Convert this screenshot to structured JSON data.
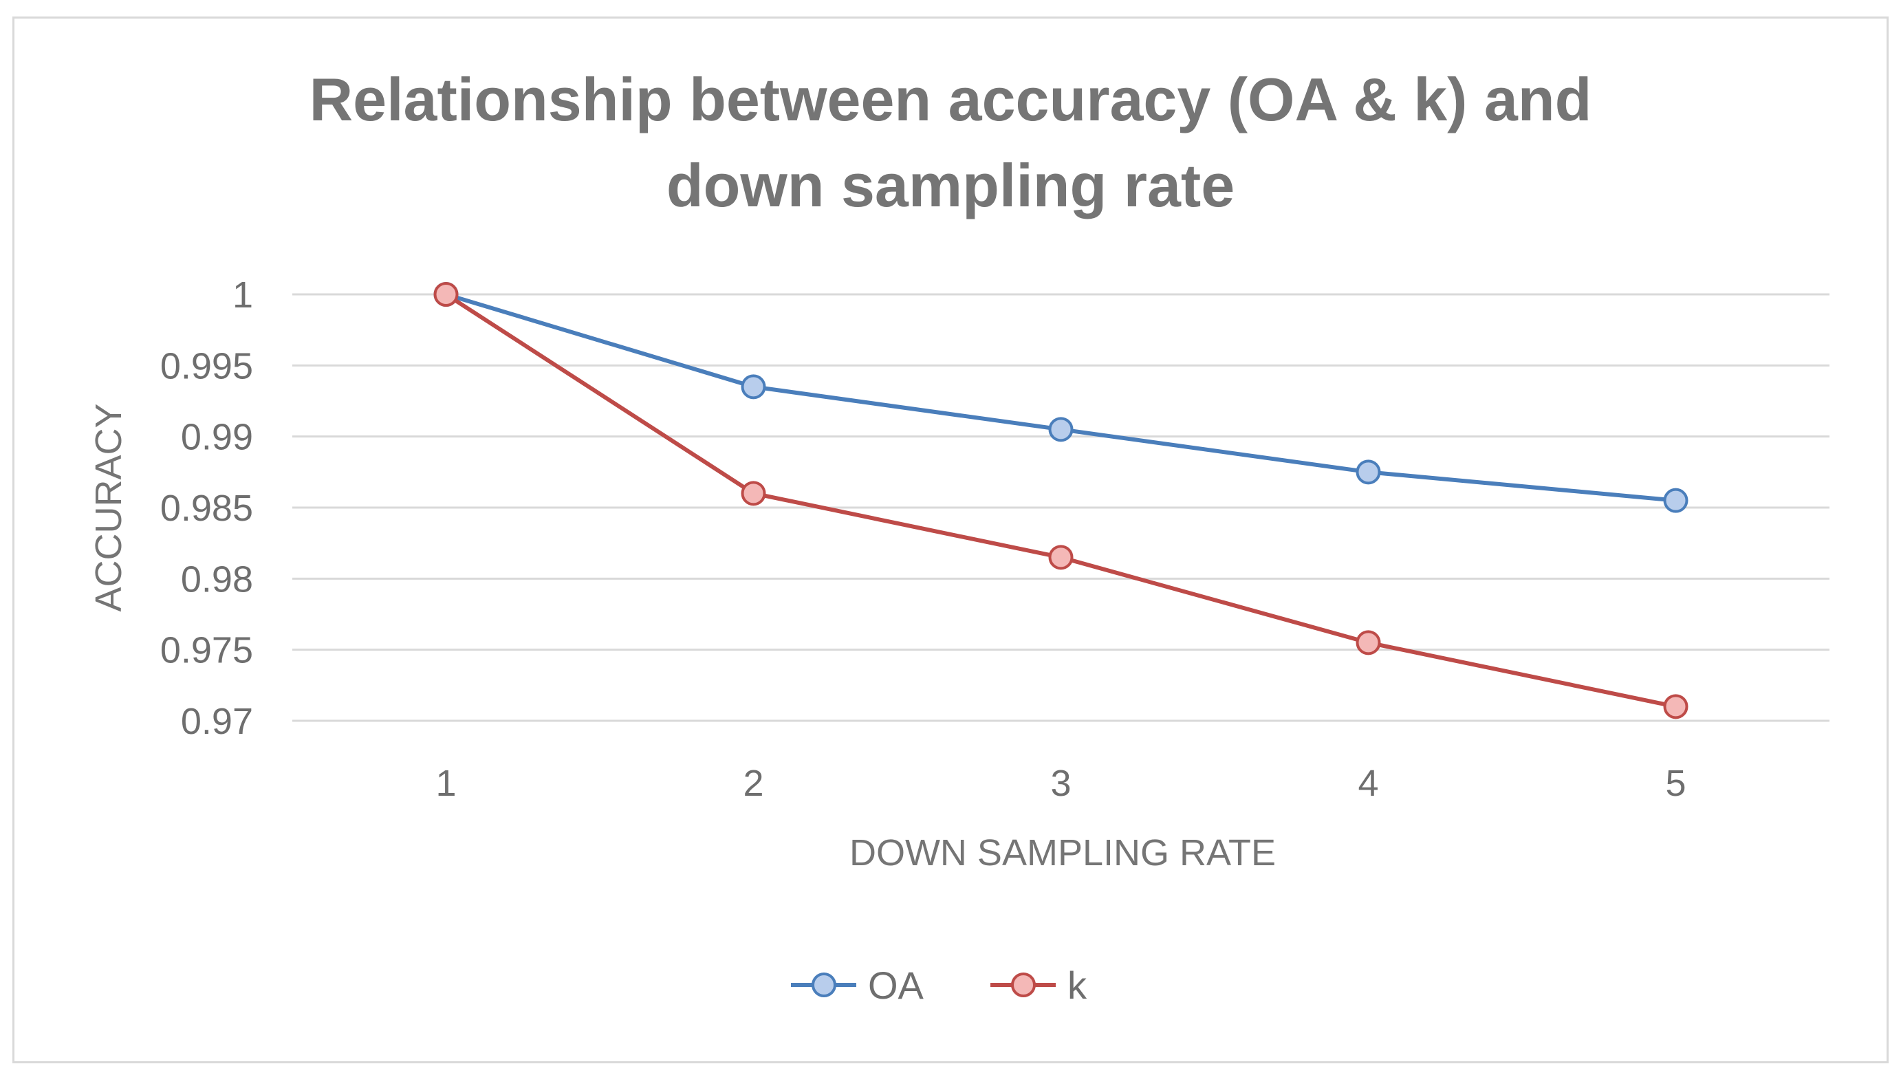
{
  "chart_data": {
    "type": "line",
    "title_lines": [
      "Relationship between accuracy (OA & k) and",
      "down sampling rate"
    ],
    "xlabel": "DOWN SAMPLING RATE",
    "ylabel": "ACCURACY",
    "categories": [
      "1",
      "2",
      "3",
      "4",
      "5"
    ],
    "ylim": [
      0.97,
      1.0
    ],
    "yticks": [
      0.97,
      0.975,
      0.98,
      0.985,
      0.99,
      0.995,
      1.0
    ],
    "ytick_labels": [
      "0.97",
      "0.975",
      "0.98",
      "0.985",
      "0.99",
      "0.995",
      "1"
    ],
    "grid": true,
    "legend_position": "bottom",
    "series": [
      {
        "name": "OA",
        "values": [
          1.0,
          0.9935,
          0.9905,
          0.9875,
          0.9855
        ],
        "line_color": "#4a7ebb",
        "marker_fill": "#b8cdec",
        "marker_edge": "#4a7ebb"
      },
      {
        "name": "k",
        "values": [
          1.0,
          0.986,
          0.9815,
          0.9755,
          0.971
        ],
        "line_color": "#be4b48",
        "marker_fill": "#f4b8b7",
        "marker_edge": "#be4b48"
      }
    ]
  }
}
